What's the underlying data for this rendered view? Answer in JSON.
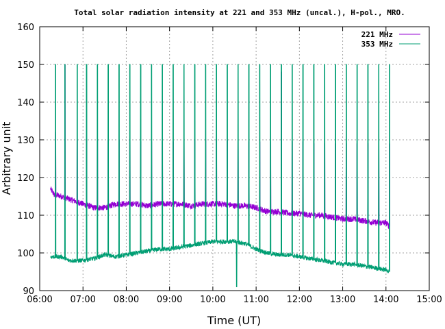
{
  "chart_data": {
    "type": "line",
    "title": "Total solar radiation intensity at 221 and 353 MHz (uncal.), H-pol., MRO.",
    "xlabel": "Time (UT)",
    "ylabel": "Arbitrary unit",
    "xlim": [
      "06:00",
      "15:00"
    ],
    "ylim": [
      90,
      160
    ],
    "x_ticks": [
      "06:00",
      "07:00",
      "08:00",
      "09:00",
      "10:00",
      "11:00",
      "12:00",
      "13:00",
      "14:00",
      "15:00"
    ],
    "y_ticks": [
      90,
      100,
      110,
      120,
      130,
      140,
      150,
      160
    ],
    "grid": true,
    "legend": "top-right",
    "series": [
      {
        "name": "221 MHz",
        "color": "#9400d3",
        "baseline": [
          [
            "06:15",
            117
          ],
          [
            "06:20",
            115.5
          ],
          [
            "06:30",
            115
          ],
          [
            "06:45",
            114
          ],
          [
            "07:00",
            113
          ],
          [
            "07:15",
            112
          ],
          [
            "07:30",
            112
          ],
          [
            "07:45",
            113
          ],
          [
            "08:00",
            113
          ],
          [
            "08:15",
            113
          ],
          [
            "08:30",
            112.5
          ],
          [
            "08:45",
            113
          ],
          [
            "09:00",
            113
          ],
          [
            "09:15",
            113
          ],
          [
            "09:30",
            112.5
          ],
          [
            "09:45",
            113
          ],
          [
            "10:00",
            113
          ],
          [
            "10:15",
            113
          ],
          [
            "10:30",
            112.5
          ],
          [
            "10:45",
            112.5
          ],
          [
            "11:00",
            112
          ],
          [
            "11:15",
            111
          ],
          [
            "11:30",
            111
          ],
          [
            "11:45",
            110.5
          ],
          [
            "12:00",
            110.5
          ],
          [
            "12:15",
            110
          ],
          [
            "12:30",
            110
          ],
          [
            "12:45",
            109.5
          ],
          [
            "13:00",
            109
          ],
          [
            "13:15",
            109
          ],
          [
            "13:30",
            108.5
          ],
          [
            "13:45",
            108
          ],
          [
            "14:00",
            108
          ],
          [
            "14:05",
            107
          ]
        ],
        "spikes": [
          [
            "06:22",
            132
          ],
          [
            "06:35",
            150
          ],
          [
            "06:52",
            130
          ],
          [
            "07:05",
            130
          ],
          [
            "07:20",
            130
          ],
          [
            "07:35",
            130
          ],
          [
            "07:50",
            130
          ],
          [
            "08:05",
            130
          ],
          [
            "08:20",
            129.5
          ],
          [
            "08:35",
            129.5
          ],
          [
            "08:50",
            129.5
          ],
          [
            "09:05",
            129.5
          ],
          [
            "09:20",
            129.5
          ],
          [
            "09:35",
            130
          ],
          [
            "09:50",
            130
          ],
          [
            "10:05",
            130
          ],
          [
            "10:20",
            130
          ],
          [
            "10:35",
            130
          ],
          [
            "10:50",
            129.5
          ],
          [
            "11:05",
            129.5
          ],
          [
            "11:20",
            129.5
          ],
          [
            "11:35",
            148
          ],
          [
            "11:50",
            129.5
          ],
          [
            "12:05",
            129.5
          ],
          [
            "12:20",
            129
          ],
          [
            "12:35",
            129
          ],
          [
            "12:50",
            129
          ],
          [
            "13:05",
            129
          ],
          [
            "13:20",
            129
          ],
          [
            "13:35",
            129
          ],
          [
            "13:50",
            129
          ],
          [
            "14:05",
            129
          ]
        ]
      },
      {
        "name": "353 MHz",
        "color": "#009e73",
        "baseline": [
          [
            "06:15",
            99
          ],
          [
            "06:30",
            99
          ],
          [
            "06:40",
            98
          ],
          [
            "07:00",
            98
          ],
          [
            "07:15",
            98.5
          ],
          [
            "07:30",
            99.5
          ],
          [
            "07:45",
            99
          ],
          [
            "08:00",
            99.5
          ],
          [
            "08:15",
            100
          ],
          [
            "08:30",
            100.5
          ],
          [
            "08:45",
            101
          ],
          [
            "09:00",
            101
          ],
          [
            "09:15",
            101.5
          ],
          [
            "09:30",
            102
          ],
          [
            "09:45",
            102.5
          ],
          [
            "10:00",
            103
          ],
          [
            "10:15",
            103
          ],
          [
            "10:30",
            103
          ],
          [
            "10:45",
            102.5
          ],
          [
            "11:00",
            101
          ],
          [
            "11:15",
            100
          ],
          [
            "11:30",
            99.5
          ],
          [
            "11:45",
            99.5
          ],
          [
            "12:00",
            99
          ],
          [
            "12:15",
            98.5
          ],
          [
            "12:30",
            98
          ],
          [
            "12:45",
            97.5
          ],
          [
            "13:00",
            97
          ],
          [
            "13:15",
            97
          ],
          [
            "13:30",
            96.5
          ],
          [
            "13:45",
            96
          ],
          [
            "14:00",
            95.5
          ],
          [
            "14:05",
            95
          ]
        ],
        "spikes": [
          [
            "06:22",
            150
          ],
          [
            "06:35",
            150
          ],
          [
            "06:52",
            150
          ],
          [
            "07:05",
            150
          ],
          [
            "07:20",
            150
          ],
          [
            "07:35",
            150
          ],
          [
            "07:50",
            150
          ],
          [
            "08:05",
            150
          ],
          [
            "08:20",
            150
          ],
          [
            "08:35",
            150
          ],
          [
            "08:50",
            150
          ],
          [
            "09:05",
            150
          ],
          [
            "09:20",
            150
          ],
          [
            "09:35",
            150
          ],
          [
            "09:50",
            150
          ],
          [
            "10:05",
            150
          ],
          [
            "10:20",
            150
          ],
          [
            "10:35",
            150
          ],
          [
            "10:50",
            150
          ],
          [
            "11:05",
            150
          ],
          [
            "11:20",
            150
          ],
          [
            "11:35",
            150
          ],
          [
            "11:50",
            150
          ],
          [
            "12:05",
            150
          ],
          [
            "12:20",
            150
          ],
          [
            "12:35",
            150
          ],
          [
            "12:50",
            150
          ],
          [
            "13:05",
            150
          ],
          [
            "13:20",
            150
          ],
          [
            "13:35",
            150
          ],
          [
            "13:50",
            150
          ],
          [
            "14:05",
            150
          ]
        ],
        "dips": [
          [
            "10:33",
            91
          ]
        ]
      }
    ]
  }
}
